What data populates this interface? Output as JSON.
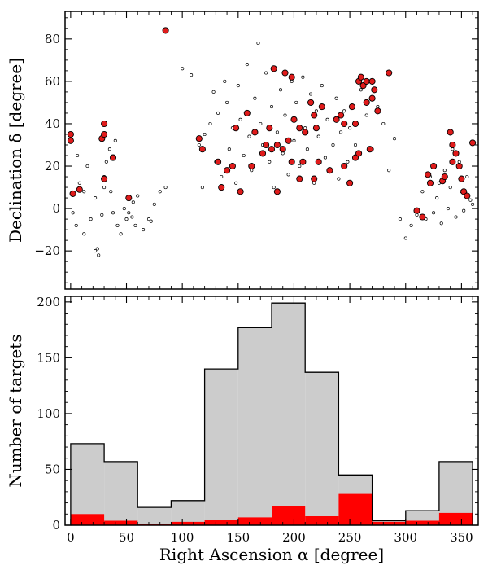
{
  "chart_data": [
    {
      "type": "scatter",
      "ylabel": "Declination δ [degree]",
      "xlim": [
        -5,
        365
      ],
      "ylim": [
        -38,
        93
      ],
      "x_ticks": [
        0,
        50,
        100,
        150,
        200,
        250,
        300,
        350
      ],
      "y_ticks": [
        -20,
        0,
        20,
        40,
        60,
        80
      ],
      "y_tick_labels": [
        "−20",
        "0",
        "20",
        "40",
        "60",
        "80"
      ],
      "series": [
        {
          "marker": "small-open-circle",
          "color": "#000000",
          "fill": "#ffffff",
          "points": [
            [
              2,
              -2
            ],
            [
              5,
              -8
            ],
            [
              8,
              12
            ],
            [
              6,
              25
            ],
            [
              12,
              -12
            ],
            [
              12,
              8
            ],
            [
              15,
              20
            ],
            [
              18,
              -5
            ],
            [
              22,
              -20
            ],
            [
              25,
              -22
            ],
            [
              24,
              -19
            ],
            [
              22,
              5
            ],
            [
              28,
              -3
            ],
            [
              30,
              10
            ],
            [
              30,
              15
            ],
            [
              32,
              22
            ],
            [
              35,
              28
            ],
            [
              36,
              8
            ],
            [
              38,
              -2
            ],
            [
              40,
              32
            ],
            [
              42,
              -8
            ],
            [
              45,
              -12
            ],
            [
              48,
              0
            ],
            [
              50,
              -5
            ],
            [
              52,
              -2
            ],
            [
              55,
              -4
            ],
            [
              56,
              3
            ],
            [
              58,
              -8
            ],
            [
              60,
              6
            ],
            [
              65,
              -10
            ],
            [
              70,
              -5
            ],
            [
              72,
              -6
            ],
            [
              75,
              2
            ],
            [
              80,
              8
            ],
            [
              85,
              10
            ],
            [
              100,
              66
            ],
            [
              108,
              63
            ],
            [
              115,
              30
            ],
            [
              118,
              10
            ],
            [
              120,
              35
            ],
            [
              125,
              40
            ],
            [
              128,
              55
            ],
            [
              130,
              22
            ],
            [
              132,
              45
            ],
            [
              135,
              15
            ],
            [
              138,
              60
            ],
            [
              140,
              50
            ],
            [
              142,
              28
            ],
            [
              145,
              38
            ],
            [
              148,
              12
            ],
            [
              150,
              58
            ],
            [
              152,
              42
            ],
            [
              155,
              25
            ],
            [
              158,
              68
            ],
            [
              160,
              34
            ],
            [
              162,
              18
            ],
            [
              165,
              52
            ],
            [
              168,
              78
            ],
            [
              170,
              40
            ],
            [
              172,
              30
            ],
            [
              175,
              64
            ],
            [
              178,
              22
            ],
            [
              180,
              48
            ],
            [
              182,
              10
            ],
            [
              185,
              36
            ],
            [
              188,
              56
            ],
            [
              190,
              26
            ],
            [
              192,
              44
            ],
            [
              195,
              16
            ],
            [
              198,
              60
            ],
            [
              200,
              32
            ],
            [
              202,
              50
            ],
            [
              205,
              20
            ],
            [
              208,
              62
            ],
            [
              210,
              38
            ],
            [
              212,
              28
            ],
            [
              215,
              54
            ],
            [
              218,
              12
            ],
            [
              220,
              46
            ],
            [
              222,
              34
            ],
            [
              225,
              58
            ],
            [
              228,
              24
            ],
            [
              230,
              42
            ],
            [
              232,
              18
            ],
            [
              235,
              30
            ],
            [
              238,
              52
            ],
            [
              240,
              14
            ],
            [
              242,
              36
            ],
            [
              245,
              46
            ],
            [
              248,
              22
            ],
            [
              250,
              38
            ],
            [
              255,
              30
            ],
            [
              260,
              56
            ],
            [
              265,
              44
            ],
            [
              270,
              28
            ],
            [
              275,
              48
            ],
            [
              280,
              40
            ],
            [
              285,
              18
            ],
            [
              290,
              33
            ],
            [
              295,
              -5
            ],
            [
              300,
              -14
            ],
            [
              305,
              -8
            ],
            [
              310,
              -3
            ],
            [
              315,
              8
            ],
            [
              318,
              -5
            ],
            [
              322,
              15
            ],
            [
              325,
              -2
            ],
            [
              328,
              5
            ],
            [
              330,
              12
            ],
            [
              332,
              -7
            ],
            [
              335,
              18
            ],
            [
              338,
              0
            ],
            [
              340,
              10
            ],
            [
              342,
              28
            ],
            [
              345,
              -4
            ],
            [
              348,
              22
            ],
            [
              350,
              8
            ],
            [
              352,
              -1
            ],
            [
              355,
              15
            ],
            [
              358,
              4
            ],
            [
              360,
              2
            ]
          ]
        },
        {
          "marker": "large-filled-circle",
          "color": "#000000",
          "fill": "#e01b1b",
          "points": [
            [
              0,
              35
            ],
            [
              0,
              32
            ],
            [
              2,
              7
            ],
            [
              8,
              9
            ],
            [
              30,
              40
            ],
            [
              28,
              33
            ],
            [
              30,
              35
            ],
            [
              30,
              14
            ],
            [
              38,
              24
            ],
            [
              52,
              5
            ],
            [
              85,
              84
            ],
            [
              115,
              33
            ],
            [
              118,
              28
            ],
            [
              132,
              22
            ],
            [
              135,
              10
            ],
            [
              140,
              18
            ],
            [
              145,
              20
            ],
            [
              148,
              38
            ],
            [
              152,
              8
            ],
            [
              158,
              45
            ],
            [
              162,
              20
            ],
            [
              165,
              36
            ],
            [
              172,
              26
            ],
            [
              175,
              30
            ],
            [
              178,
              38
            ],
            [
              180,
              28
            ],
            [
              182,
              66
            ],
            [
              185,
              30
            ],
            [
              185,
              8
            ],
            [
              190,
              28
            ],
            [
              192,
              64
            ],
            [
              195,
              32
            ],
            [
              198,
              62
            ],
            [
              198,
              22
            ],
            [
              200,
              42
            ],
            [
              205,
              38
            ],
            [
              205,
              14
            ],
            [
              208,
              22
            ],
            [
              210,
              36
            ],
            [
              215,
              50
            ],
            [
              218,
              44
            ],
            [
              218,
              14
            ],
            [
              220,
              38
            ],
            [
              222,
              22
            ],
            [
              225,
              48
            ],
            [
              232,
              18
            ],
            [
              238,
              42
            ],
            [
              242,
              44
            ],
            [
              245,
              40
            ],
            [
              245,
              20
            ],
            [
              250,
              12
            ],
            [
              252,
              48
            ],
            [
              255,
              24
            ],
            [
              258,
              26
            ],
            [
              255,
              40
            ],
            [
              258,
              60
            ],
            [
              260,
              62
            ],
            [
              262,
              58
            ],
            [
              265,
              60
            ],
            [
              265,
              50
            ],
            [
              270,
              60
            ],
            [
              272,
              56
            ],
            [
              268,
              28
            ],
            [
              270,
              52
            ],
            [
              275,
              46
            ],
            [
              285,
              64
            ],
            [
              310,
              -1
            ],
            [
              315,
              -4
            ],
            [
              320,
              16
            ],
            [
              322,
              12
            ],
            [
              325,
              20
            ],
            [
              333,
              13
            ],
            [
              335,
              15
            ],
            [
              340,
              36
            ],
            [
              342,
              30
            ],
            [
              342,
              22
            ],
            [
              345,
              26
            ],
            [
              348,
              20
            ],
            [
              350,
              14
            ],
            [
              352,
              8
            ],
            [
              355,
              6
            ],
            [
              360,
              31
            ]
          ]
        }
      ]
    },
    {
      "type": "bar",
      "xlabel": "Right Ascension α [degree]",
      "ylabel": "Number of targets",
      "xlim": [
        -5,
        365
      ],
      "ylim": [
        0,
        205
      ],
      "x_ticks": [
        0,
        50,
        100,
        150,
        200,
        250,
        300,
        350
      ],
      "y_ticks": [
        0,
        50,
        100,
        150,
        200
      ],
      "bin_edges": [
        0,
        30,
        60,
        90,
        120,
        150,
        180,
        210,
        240,
        270,
        300,
        330,
        360
      ],
      "series": [
        {
          "color": "#cccccc",
          "edge": "#000000",
          "values": [
            73,
            57,
            16,
            22,
            140,
            177,
            199,
            137,
            45,
            4,
            13,
            57
          ]
        },
        {
          "color": "#ff0000",
          "edge": "#ff0000",
          "values": [
            10,
            4,
            1,
            3,
            5,
            7,
            17,
            8,
            28,
            3,
            4,
            11
          ]
        }
      ]
    }
  ]
}
